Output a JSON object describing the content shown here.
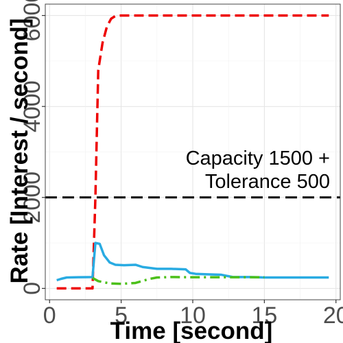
{
  "chart_data": {
    "type": "line",
    "title": "",
    "xlabel": "Time [second]",
    "ylabel": "Rate [Interest / second]",
    "xlim": [
      -0.3,
      20.3
    ],
    "ylim": [
      -250,
      6250
    ],
    "x_ticks": [
      0,
      5,
      10,
      15,
      20
    ],
    "x_tick_labels": [
      "0",
      "5",
      "10",
      "15",
      "20"
    ],
    "y_ticks": [
      0,
      2000,
      4000,
      6000
    ],
    "y_tick_labels": [
      "0",
      "2000",
      "4000",
      "6000"
    ],
    "grid": true,
    "legend": "none",
    "hline": {
      "y": 2000,
      "style": "dashed",
      "color": "#000000"
    },
    "annotations": [
      "Capacity 1500 +",
      "Tolerance 500"
    ],
    "series": [
      {
        "color": "#ee0000",
        "style": "dashed",
        "x": [
          0.5,
          3.0,
          3.2,
          3.4,
          3.7,
          4.0,
          4.3,
          4.6,
          5.0,
          6,
          8,
          10,
          12,
          14,
          16,
          18,
          19.5
        ],
        "y": [
          0,
          0,
          2000,
          4800,
          5400,
          5750,
          5930,
          5990,
          6000,
          6000,
          6000,
          6000,
          6000,
          6000,
          6000,
          6000,
          6000
        ]
      },
      {
        "color": "#29abe2",
        "style": "solid",
        "x": [
          0.5,
          0.8,
          1.2,
          2,
          3.0,
          3.2,
          3.5,
          3.8,
          4.2,
          4.6,
          5.2,
          6.0,
          6.5,
          7.5,
          8.5,
          9.5,
          9.8,
          10.2,
          11,
          12,
          12.3,
          12.8,
          14,
          15,
          16,
          18,
          19.5
        ],
        "y": [
          180,
          210,
          240,
          245,
          250,
          1000,
          980,
          730,
          570,
          520,
          510,
          520,
          470,
          430,
          430,
          420,
          340,
          320,
          310,
          300,
          280,
          250,
          250,
          240,
          240,
          240,
          240
        ]
      },
      {
        "color": "#4cc01a",
        "style": "dashdot",
        "x": [
          3.0,
          3.4,
          4.2,
          5.0,
          6.0,
          7.0,
          7.5,
          8.5,
          10,
          12,
          14,
          15
        ],
        "y": [
          230,
          160,
          110,
          100,
          120,
          210,
          240,
          250,
          245,
          245,
          245,
          245
        ]
      }
    ]
  }
}
